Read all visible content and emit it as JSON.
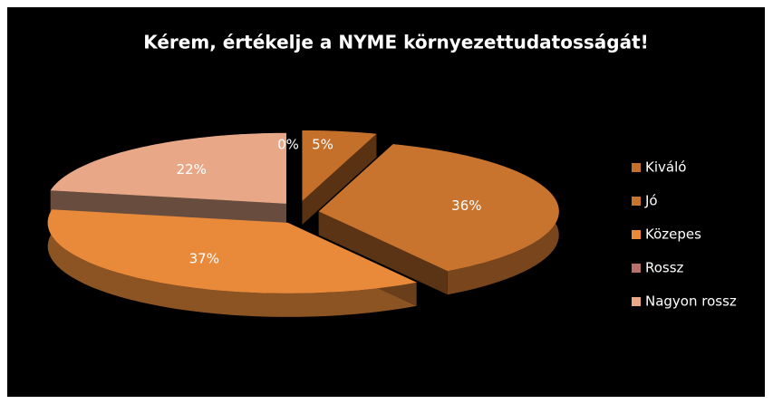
{
  "chart_data": {
    "type": "pie",
    "title": "Kérem, értékelje a NYME környezettudatosságát!",
    "categories": [
      "Kiváló",
      "Jó",
      "Közepes",
      "Rossz",
      "Nagyon rossz"
    ],
    "values": [
      5,
      36,
      37,
      0,
      22
    ],
    "value_labels": [
      "5%",
      "36%",
      "37%",
      "0%",
      "22%"
    ],
    "colors": [
      "#c46f2a",
      "#c8732e",
      "#e98a3b",
      "#b8706a",
      "#e8a888"
    ],
    "legend": "right"
  }
}
